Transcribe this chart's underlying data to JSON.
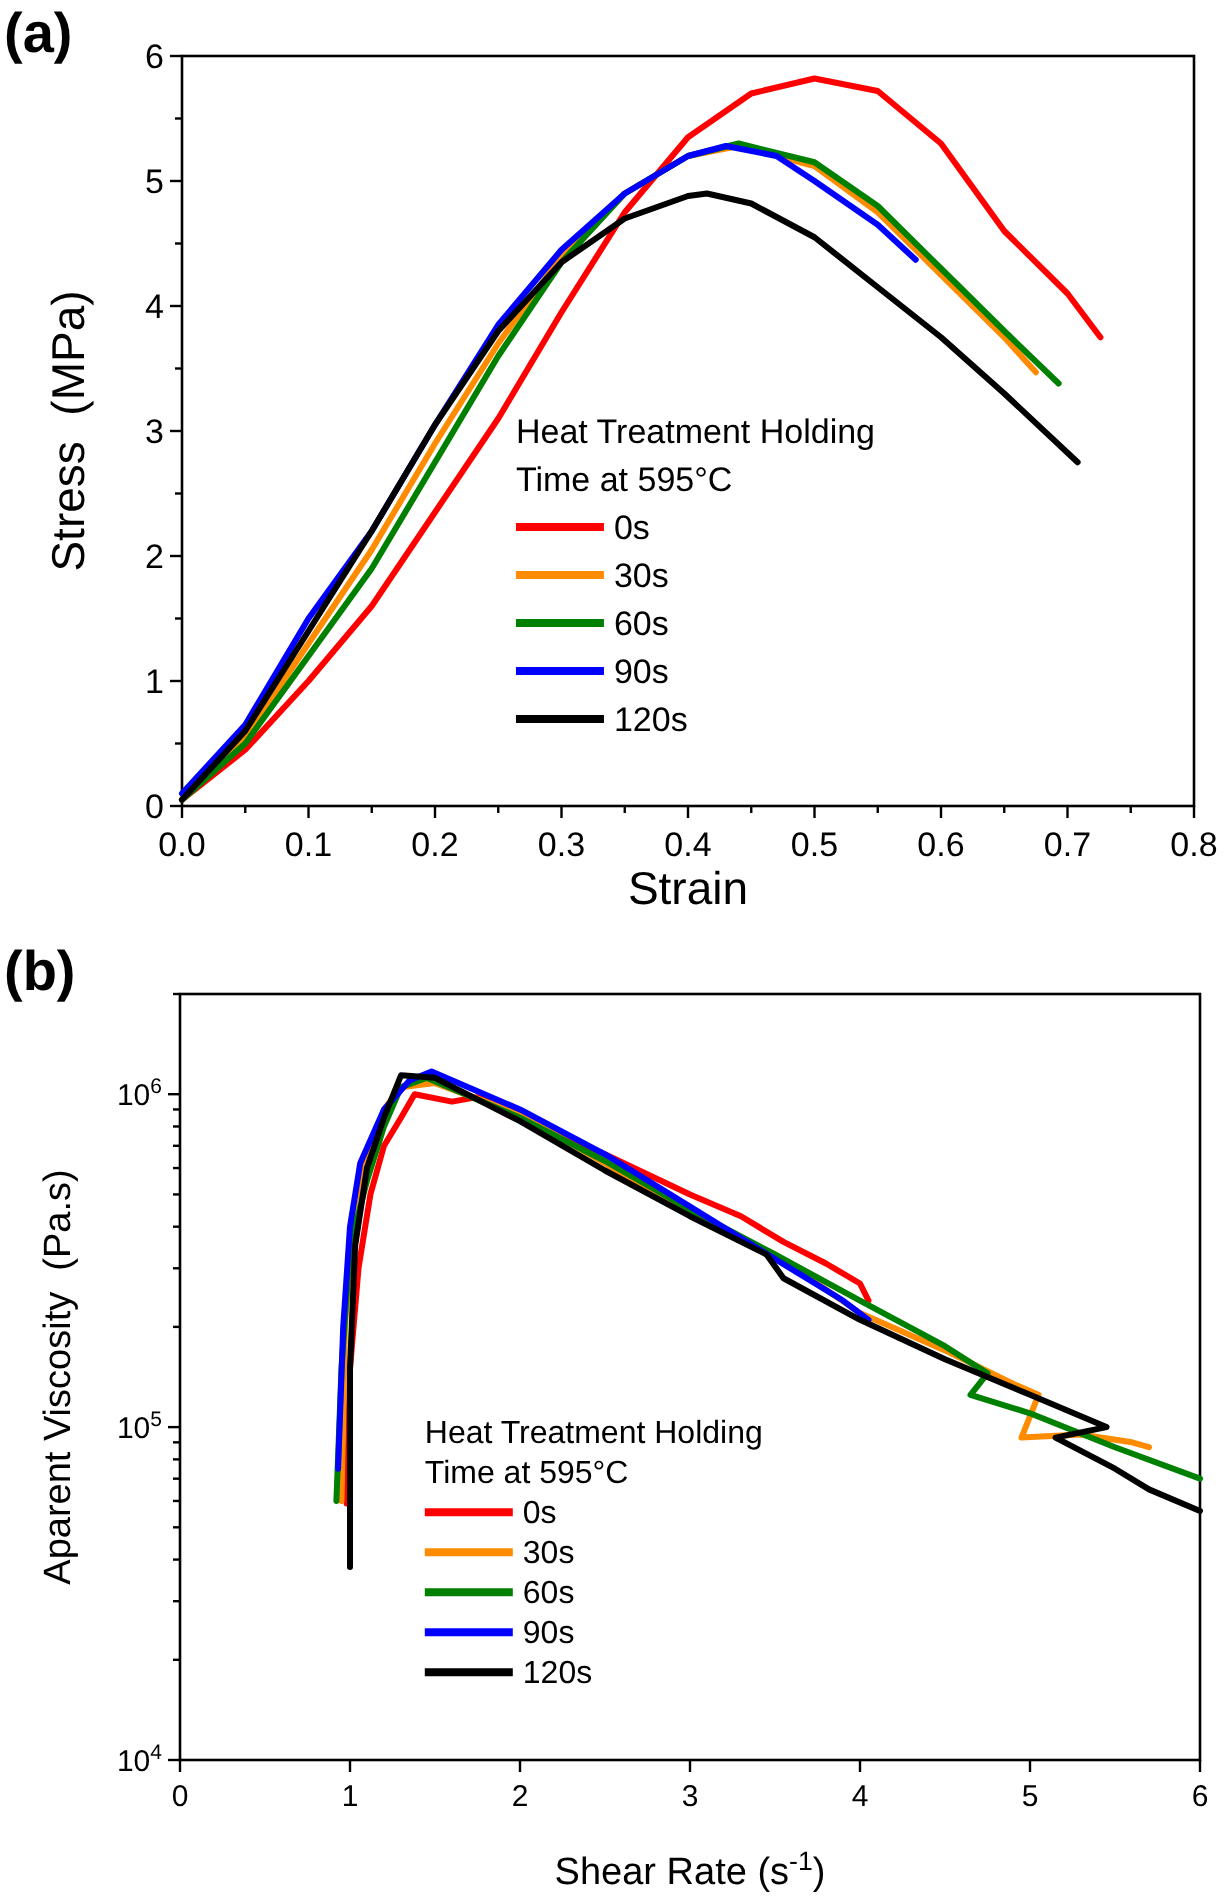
{
  "chart_data": [
    {
      "type": "line",
      "title": "(a)",
      "xlabel": "Strain",
      "ylabel": "Stress  (MPa)",
      "legend_title": "Heat Treatment Holding Time at 595°C",
      "legend": "bottom",
      "grid": false,
      "marker": "none",
      "line_style": "solid",
      "xlim": [
        0,
        0.8
      ],
      "ylim": [
        0,
        6
      ],
      "xticks": [
        {
          "value": 0,
          "label": "0.0"
        },
        {
          "value": 0.05,
          "label": null
        },
        0.1,
        {
          "value": 0.15,
          "label": null
        },
        0.2,
        {
          "value": 0.25,
          "label": null
        },
        0.3,
        {
          "value": 0.35,
          "label": null
        },
        0.4,
        {
          "value": 0.45,
          "label": null
        },
        0.5,
        {
          "value": 0.55,
          "label": null
        },
        0.6,
        {
          "value": 0.65,
          "label": null
        },
        0.7,
        {
          "value": 0.75,
          "label": null
        },
        0.8
      ],
      "yticks": [
        0,
        {
          "value": 0.5,
          "label": null
        },
        1,
        {
          "value": 1.5,
          "label": null
        },
        2,
        {
          "value": 2.5,
          "label": null
        },
        3,
        {
          "value": 3.5,
          "label": null
        },
        4,
        {
          "value": 4.5,
          "label": null
        },
        5,
        {
          "value": 5.5,
          "label": null
        },
        6
      ],
      "series": [
        {
          "name": "0s",
          "color": "#ff0000",
          "x": [
            0,
            0.05,
            0.1,
            0.15,
            0.2,
            0.25,
            0.3,
            0.35,
            0.4,
            0.45,
            0.5,
            0.55,
            0.6,
            0.65,
            0.7,
            0.726
          ],
          "values": [
            0.05,
            0.45,
            1.0,
            1.6,
            2.35,
            3.1,
            3.95,
            4.75,
            5.35,
            5.7,
            5.82,
            5.72,
            5.3,
            4.6,
            4.1,
            3.75
          ]
        },
        {
          "name": "30s",
          "color": "#ff8c00",
          "x": [
            0,
            0.05,
            0.1,
            0.15,
            0.2,
            0.25,
            0.3,
            0.35,
            0.4,
            0.44,
            0.5,
            0.55,
            0.6,
            0.65,
            0.675
          ],
          "values": [
            0.05,
            0.55,
            1.3,
            2.05,
            2.9,
            3.7,
            4.4,
            4.9,
            5.2,
            5.28,
            5.12,
            4.75,
            4.25,
            3.75,
            3.47
          ]
        },
        {
          "name": "60s",
          "color": "#008000",
          "x": [
            0,
            0.05,
            0.1,
            0.15,
            0.2,
            0.25,
            0.3,
            0.35,
            0.4,
            0.44,
            0.5,
            0.55,
            0.6,
            0.65,
            0.693
          ],
          "values": [
            0.05,
            0.5,
            1.2,
            1.9,
            2.75,
            3.6,
            4.35,
            4.9,
            5.2,
            5.3,
            5.15,
            4.8,
            4.3,
            3.8,
            3.38
          ]
        },
        {
          "name": "90s",
          "color": "#0000ff",
          "x": [
            0,
            0.05,
            0.1,
            0.15,
            0.2,
            0.25,
            0.3,
            0.35,
            0.4,
            0.43,
            0.47,
            0.5,
            0.55,
            0.58
          ],
          "values": [
            0.1,
            0.65,
            1.5,
            2.2,
            3.05,
            3.85,
            4.45,
            4.9,
            5.2,
            5.28,
            5.2,
            5.0,
            4.65,
            4.37
          ]
        },
        {
          "name": "120s",
          "color": "#000000",
          "x": [
            0,
            0.05,
            0.1,
            0.15,
            0.2,
            0.25,
            0.3,
            0.35,
            0.4,
            0.415,
            0.45,
            0.5,
            0.55,
            0.6,
            0.65,
            0.708
          ],
          "values": [
            0.05,
            0.6,
            1.4,
            2.2,
            3.05,
            3.8,
            4.35,
            4.7,
            4.88,
            4.9,
            4.82,
            4.55,
            4.15,
            3.75,
            3.3,
            2.75
          ]
        }
      ]
    },
    {
      "type": "line",
      "title": "(b)",
      "xlabel": "Shear Rate (s$^{-1}$)",
      "ylabel": "Aparent Viscosity  (Pa.s)",
      "legend_title": "Heat Treatment Holding Time at 595°C",
      "legend": "bottom left",
      "grid": false,
      "marker": "none",
      "line_style": "solid",
      "log": "y",
      "xlim": [
        0,
        6
      ],
      "ylim": [
        10000,
        2000000
      ],
      "xticks": [
        0,
        1,
        2,
        3,
        4,
        5,
        6
      ],
      "yticks": [
        {
          "value": 10000,
          "label": "10$^{4}$"
        },
        {
          "value": 20000,
          "label": null
        },
        {
          "value": 30000,
          "label": null
        },
        {
          "value": 40000,
          "label": null
        },
        {
          "value": 50000,
          "label": null
        },
        {
          "value": 60000,
          "label": null
        },
        {
          "value": 70000,
          "label": null
        },
        {
          "value": 80000,
          "label": null
        },
        {
          "value": 90000,
          "label": null
        },
        {
          "value": 100000,
          "label": "10$^{5}$"
        },
        {
          "value": 200000,
          "label": null
        },
        {
          "value": 300000,
          "label": null
        },
        {
          "value": 400000,
          "label": null
        },
        {
          "value": 500000,
          "label": null
        },
        {
          "value": 600000,
          "label": null
        },
        {
          "value": 700000,
          "label": null
        },
        {
          "value": 800000,
          "label": null
        },
        {
          "value": 900000,
          "label": null
        },
        {
          "value": 1000000,
          "label": "10$^{6}$"
        },
        {
          "value": 2000000,
          "label": null
        }
      ],
      "series": [
        {
          "name": "0s",
          "color": "#ff0000",
          "x": [
            0.98,
            1.0,
            1.05,
            1.12,
            1.2,
            1.3,
            1.38,
            1.6,
            1.75,
            2.0,
            2.5,
            3.0,
            3.3,
            3.55,
            3.8,
            4.0,
            4.05
          ],
          "values": [
            59000,
            150000,
            300000,
            500000,
            700000,
            850000,
            1000000,
            950000,
            980000,
            860000,
            660000,
            500000,
            430000,
            360000,
            310000,
            270000,
            240000
          ]
        },
        {
          "name": "30s",
          "color": "#ff8c00",
          "x": [
            0.95,
            0.97,
            1.02,
            1.1,
            1.2,
            1.3,
            1.5,
            2.0,
            2.5,
            3.0,
            3.5,
            4.0,
            4.5,
            4.9,
            5.05,
            4.95,
            5.3,
            5.6,
            5.7
          ],
          "values": [
            60000,
            200000,
            450000,
            650000,
            900000,
            1050000,
            1080000,
            870000,
            620000,
            440000,
            330000,
            220000,
            170000,
            135000,
            125000,
            93000,
            95000,
            90000,
            87000
          ]
        },
        {
          "name": "60s",
          "color": "#008000",
          "x": [
            0.92,
            0.95,
            1.0,
            1.1,
            1.2,
            1.3,
            1.45,
            2.0,
            2.5,
            3.0,
            3.5,
            4.0,
            4.5,
            4.75,
            4.65,
            5.0,
            5.5,
            6.0
          ],
          "values": [
            60000,
            150000,
            350000,
            550000,
            800000,
            1050000,
            1120000,
            850000,
            630000,
            450000,
            330000,
            240000,
            175000,
            145000,
            125000,
            110000,
            87000,
            70000
          ]
        },
        {
          "name": "90s",
          "color": "#0000ff",
          "x": [
            0.93,
            0.96,
            1.0,
            1.06,
            1.2,
            1.35,
            1.48,
            2.0,
            2.5,
            3.0,
            3.5,
            3.9,
            4.05
          ],
          "values": [
            75000,
            200000,
            400000,
            620000,
            900000,
            1100000,
            1170000,
            900000,
            660000,
            460000,
            320000,
            240000,
            210000
          ]
        },
        {
          "name": "120s",
          "color": "#000000",
          "x": [
            1.0,
            1.0,
            1.03,
            1.1,
            1.2,
            1.3,
            1.5,
            2.0,
            2.5,
            3.0,
            3.45,
            3.55,
            4.0,
            4.5,
            5.0,
            5.45,
            5.15,
            5.5,
            5.7,
            6.0
          ],
          "values": [
            38000,
            150000,
            350000,
            600000,
            850000,
            1140000,
            1120000,
            830000,
            590000,
            430000,
            330000,
            280000,
            210000,
            160000,
            125000,
            100000,
            93000,
            75000,
            65000,
            56000
          ]
        }
      ]
    }
  ]
}
